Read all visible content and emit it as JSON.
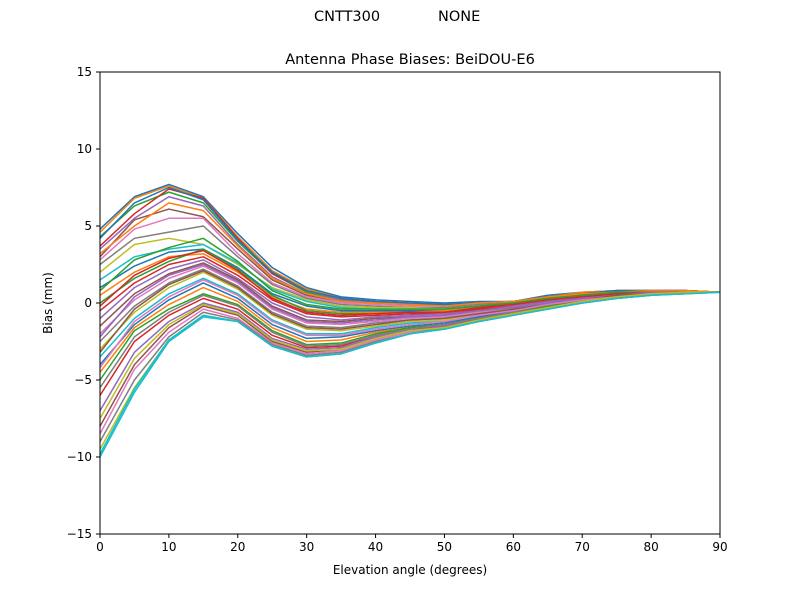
{
  "suptitle": {
    "left": "CNTT300",
    "right": "NONE"
  },
  "chart_data": {
    "type": "line",
    "title": "Antenna Phase Biases: BeiDOU-E6",
    "xlabel": "Elevation angle (degrees)",
    "ylabel": "Bias (mm)",
    "xlim": [
      0,
      90
    ],
    "ylim": [
      -15,
      15
    ],
    "xticks": [
      "0",
      "10",
      "20",
      "30",
      "40",
      "50",
      "60",
      "70",
      "80",
      "90"
    ],
    "yticks": [
      "−15",
      "−10",
      "−5",
      "0",
      "5",
      "10",
      "15"
    ],
    "grid": false,
    "legend": "none",
    "x": [
      0,
      5,
      10,
      15,
      20,
      25,
      30,
      35,
      40,
      45,
      50,
      55,
      60,
      65,
      70,
      75,
      80,
      85,
      90
    ],
    "colors": [
      "#1f77b4",
      "#ff7f0e",
      "#2ca02c",
      "#d62728",
      "#9467bd",
      "#8c564b",
      "#e377c2",
      "#7f7f7f",
      "#bcbd22",
      "#17becf"
    ],
    "series": [
      {
        "values": [
          4.8,
          6.9,
          7.7,
          6.9,
          4.5,
          2.3,
          1.0,
          0.4,
          0.2,
          0.1,
          0.0,
          0.1,
          0.1,
          0.5,
          0.7,
          0.8,
          0.8,
          0.8,
          0.7
        ]
      },
      {
        "values": [
          4.6,
          6.8,
          7.6,
          6.8,
          4.3,
          2.1,
          0.9,
          0.3,
          0.1,
          0.0,
          -0.1,
          0.0,
          0.1,
          0.4,
          0.7,
          0.8,
          0.8,
          0.8,
          0.7
        ]
      },
      {
        "values": [
          4.3,
          6.3,
          7.2,
          6.5,
          4.0,
          1.9,
          0.7,
          0.2,
          0.0,
          -0.1,
          -0.1,
          0.0,
          0.1,
          0.4,
          0.6,
          0.8,
          0.8,
          0.8,
          0.7
        ]
      },
      {
        "values": [
          3.7,
          5.8,
          7.4,
          6.8,
          4.2,
          1.9,
          0.8,
          0.3,
          0.1,
          0.0,
          -0.1,
          0.0,
          0.1,
          0.4,
          0.6,
          0.8,
          0.8,
          0.8,
          0.7
        ]
      },
      {
        "values": [
          3.5,
          5.5,
          6.9,
          6.3,
          3.8,
          1.7,
          0.6,
          0.2,
          0.0,
          -0.1,
          -0.1,
          0.0,
          0.1,
          0.4,
          0.6,
          0.8,
          0.8,
          0.8,
          0.7
        ]
      },
      {
        "values": [
          3.0,
          5.4,
          6.1,
          5.6,
          3.5,
          1.5,
          0.5,
          0.1,
          0.0,
          -0.1,
          -0.2,
          0.0,
          0.1,
          0.4,
          0.6,
          0.7,
          0.8,
          0.8,
          0.7
        ]
      },
      {
        "values": [
          2.8,
          4.8,
          5.5,
          5.5,
          3.2,
          1.3,
          0.4,
          0.0,
          -0.1,
          -0.2,
          -0.2,
          -0.1,
          0.0,
          0.3,
          0.6,
          0.7,
          0.8,
          0.8,
          0.7
        ]
      },
      {
        "values": [
          2.5,
          4.2,
          4.6,
          5.0,
          3.0,
          1.2,
          0.3,
          -0.1,
          -0.2,
          -0.3,
          -0.3,
          -0.1,
          0.0,
          0.3,
          0.5,
          0.7,
          0.8,
          0.8,
          0.7
        ]
      },
      {
        "values": [
          2.0,
          3.8,
          4.2,
          3.8,
          2.5,
          1.0,
          0.2,
          -0.2,
          -0.3,
          -0.3,
          -0.4,
          -0.2,
          0.0,
          0.3,
          0.5,
          0.7,
          0.8,
          0.7,
          0.7
        ]
      },
      {
        "values": [
          1.5,
          3.0,
          3.5,
          3.8,
          2.6,
          0.9,
          0.1,
          -0.3,
          -0.4,
          -0.4,
          -0.4,
          -0.2,
          -0.1,
          0.2,
          0.5,
          0.7,
          0.8,
          0.7,
          0.7
        ]
      },
      {
        "values": [
          1.0,
          2.4,
          3.3,
          3.5,
          2.3,
          0.6,
          -0.2,
          -0.5,
          -0.5,
          -0.5,
          -0.5,
          -0.3,
          -0.1,
          0.2,
          0.5,
          0.6,
          0.7,
          0.7,
          0.7
        ]
      },
      {
        "values": [
          0.5,
          2.0,
          3.0,
          3.2,
          2.0,
          0.4,
          -0.4,
          -0.6,
          -0.6,
          -0.6,
          -0.5,
          -0.3,
          -0.1,
          0.2,
          0.4,
          0.6,
          0.7,
          0.7,
          0.7
        ]
      },
      {
        "values": [
          0.0,
          1.6,
          2.7,
          3.5,
          2.2,
          0.5,
          -0.5,
          -0.7,
          -0.7,
          -0.6,
          -0.6,
          -0.4,
          -0.2,
          0.1,
          0.4,
          0.6,
          0.7,
          0.7,
          0.7
        ]
      },
      {
        "values": [
          -0.5,
          1.3,
          2.5,
          3.0,
          1.8,
          0.2,
          -0.7,
          -0.9,
          -0.8,
          -0.7,
          -0.7,
          -0.4,
          -0.2,
          0.1,
          0.4,
          0.6,
          0.7,
          0.7,
          0.7
        ]
      },
      {
        "values": [
          -1.0,
          1.0,
          2.2,
          2.8,
          1.6,
          0.0,
          -0.9,
          -1.1,
          -0.9,
          -0.8,
          -0.7,
          -0.5,
          -0.2,
          0.1,
          0.4,
          0.6,
          0.7,
          0.7,
          0.7
        ]
      },
      {
        "values": [
          -1.5,
          0.6,
          1.9,
          2.6,
          1.5,
          -0.2,
          -1.1,
          -1.2,
          -1.0,
          -0.9,
          -0.8,
          -0.5,
          -0.3,
          0.0,
          0.3,
          0.5,
          0.7,
          0.7,
          0.7
        ]
      },
      {
        "values": [
          -2.0,
          0.2,
          1.6,
          2.4,
          1.3,
          -0.4,
          -1.3,
          -1.4,
          -1.2,
          -1.0,
          -0.9,
          -0.6,
          -0.3,
          0.0,
          0.3,
          0.5,
          0.7,
          0.7,
          0.7
        ]
      },
      {
        "values": [
          -2.5,
          -0.2,
          1.3,
          2.2,
          1.1,
          -0.6,
          -1.5,
          -1.6,
          -1.3,
          -1.1,
          -1.0,
          -0.7,
          -0.4,
          0.0,
          0.3,
          0.5,
          0.6,
          0.7,
          0.7
        ]
      },
      {
        "values": [
          -3.0,
          -0.6,
          1.0,
          2.0,
          0.9,
          -0.8,
          -1.7,
          -1.8,
          -1.5,
          -1.2,
          -1.1,
          -0.7,
          -0.4,
          -0.1,
          0.2,
          0.5,
          0.6,
          0.7,
          0.7
        ]
      },
      {
        "values": [
          -3.5,
          -1.0,
          0.6,
          1.6,
          0.6,
          -1.1,
          -2.0,
          -2.0,
          -1.6,
          -1.3,
          -1.2,
          -0.8,
          -0.5,
          -0.1,
          0.2,
          0.4,
          0.6,
          0.7,
          0.7
        ]
      },
      {
        "values": [
          -4.0,
          -1.4,
          0.2,
          1.3,
          0.3,
          -1.4,
          -2.3,
          -2.2,
          -1.8,
          -1.5,
          -1.3,
          -0.9,
          -0.5,
          -0.2,
          0.2,
          0.4,
          0.6,
          0.7,
          0.7
        ]
      },
      {
        "values": [
          -4.5,
          -1.6,
          -0.1,
          1.0,
          0.1,
          -1.6,
          -2.5,
          -2.4,
          -1.9,
          -1.6,
          -1.4,
          -1.0,
          -0.6,
          -0.2,
          0.1,
          0.4,
          0.6,
          0.7,
          0.7
        ]
      },
      {
        "values": [
          -5.0,
          -1.8,
          -0.4,
          0.6,
          -0.1,
          -1.8,
          -2.7,
          -2.6,
          -2.0,
          -1.6,
          -1.4,
          -1.0,
          -0.6,
          -0.2,
          0.1,
          0.4,
          0.6,
          0.7,
          0.7
        ]
      },
      {
        "values": [
          -6.0,
          -2.5,
          -0.8,
          0.3,
          -0.4,
          -2.1,
          -2.9,
          -2.8,
          -2.1,
          -1.7,
          -1.5,
          -1.0,
          -0.6,
          -0.3,
          0.1,
          0.4,
          0.6,
          0.7,
          0.7
        ]
      },
      {
        "values": [
          -7.0,
          -3.2,
          -1.2,
          0.0,
          -0.6,
          -2.3,
          -3.0,
          -2.9,
          -2.2,
          -1.8,
          -1.5,
          -1.1,
          -0.7,
          -0.3,
          0.1,
          0.4,
          0.6,
          0.7,
          0.7
        ]
      },
      {
        "values": [
          -8.0,
          -4.0,
          -1.6,
          -0.2,
          -0.8,
          -2.5,
          -3.2,
          -3.0,
          -2.3,
          -1.9,
          -1.6,
          -1.1,
          -0.7,
          -0.3,
          0.1,
          0.4,
          0.6,
          0.7,
          0.7
        ]
      },
      {
        "values": [
          -8.5,
          -4.3,
          -1.9,
          -0.4,
          -1.0,
          -2.6,
          -3.3,
          -3.1,
          -2.4,
          -1.9,
          -1.6,
          -1.1,
          -0.7,
          -0.3,
          0.1,
          0.3,
          0.5,
          0.7,
          0.7
        ]
      },
      {
        "values": [
          -9.0,
          -5.0,
          -2.2,
          -0.6,
          -1.1,
          -2.7,
          -3.4,
          -3.2,
          -2.5,
          -2.0,
          -1.6,
          -1.1,
          -0.7,
          -0.4,
          0.0,
          0.3,
          0.5,
          0.7,
          0.7
        ]
      },
      {
        "values": [
          -9.5,
          -5.5,
          -2.4,
          -0.8,
          -1.2,
          -2.8,
          -3.5,
          -3.3,
          -2.6,
          -2.0,
          -1.7,
          -1.2,
          -0.8,
          -0.4,
          0.0,
          0.3,
          0.5,
          0.6,
          0.7
        ]
      },
      {
        "values": [
          -10.0,
          -5.8,
          -2.5,
          -0.9,
          -1.2,
          -2.8,
          -3.5,
          -3.3,
          -2.6,
          -2.0,
          -1.7,
          -1.2,
          -0.8,
          -0.4,
          0.0,
          0.3,
          0.5,
          0.6,
          0.7
        ]
      },
      {
        "values": [
          4.2,
          6.5,
          7.5,
          6.7,
          4.1,
          2.0,
          0.8,
          0.3,
          0.1,
          0.0,
          -0.1,
          0.0,
          0.1,
          0.4,
          0.6,
          0.8,
          0.8,
          0.8,
          0.7
        ]
      },
      {
        "values": [
          3.2,
          5.0,
          6.5,
          6.0,
          3.7,
          1.6,
          0.6,
          0.1,
          0.0,
          -0.1,
          -0.2,
          0.0,
          0.1,
          0.4,
          0.6,
          0.7,
          0.8,
          0.8,
          0.7
        ]
      },
      {
        "values": [
          0.8,
          2.8,
          3.6,
          4.2,
          2.7,
          0.8,
          -0.1,
          -0.4,
          -0.4,
          -0.4,
          -0.4,
          -0.2,
          0.0,
          0.3,
          0.5,
          0.7,
          0.7,
          0.7,
          0.7
        ]
      },
      {
        "values": [
          -0.2,
          1.8,
          2.9,
          3.4,
          2.1,
          0.3,
          -0.6,
          -0.8,
          -0.7,
          -0.6,
          -0.6,
          -0.3,
          -0.1,
          0.2,
          0.4,
          0.6,
          0.7,
          0.7,
          0.7
        ]
      },
      {
        "values": [
          -2.2,
          0.4,
          1.8,
          2.5,
          1.4,
          -0.3,
          -1.2,
          -1.3,
          -1.1,
          -0.9,
          -0.8,
          -0.5,
          -0.3,
          0.0,
          0.3,
          0.5,
          0.7,
          0.7,
          0.7
        ]
      },
      {
        "values": [
          -3.2,
          -0.4,
          1.2,
          2.1,
          1.0,
          -0.7,
          -1.6,
          -1.7,
          -1.4,
          -1.1,
          -1.0,
          -0.7,
          -0.4,
          -0.1,
          0.2,
          0.5,
          0.6,
          0.7,
          0.7
        ]
      },
      {
        "values": [
          -4.2,
          -1.2,
          0.4,
          1.5,
          0.5,
          -1.2,
          -2.1,
          -2.1,
          -1.7,
          -1.4,
          -1.2,
          -0.8,
          -0.5,
          -0.1,
          0.2,
          0.4,
          0.6,
          0.7,
          0.7
        ]
      },
      {
        "values": [
          -5.5,
          -2.2,
          -0.6,
          0.5,
          -0.2,
          -1.9,
          -2.8,
          -2.7,
          -2.1,
          -1.7,
          -1.4,
          -1.0,
          -0.6,
          -0.3,
          0.1,
          0.4,
          0.6,
          0.7,
          0.7
        ]
      },
      {
        "values": [
          -7.5,
          -3.6,
          -1.4,
          -0.1,
          -0.7,
          -2.4,
          -3.1,
          -3.0,
          -2.3,
          -1.8,
          -1.6,
          -1.1,
          -0.7,
          -0.3,
          0.1,
          0.4,
          0.6,
          0.7,
          0.7
        ]
      },
      {
        "values": [
          -9.8,
          -5.6,
          -2.4,
          -0.8,
          -1.2,
          -2.8,
          -3.5,
          -3.3,
          -2.6,
          -2.0,
          -1.7,
          -1.2,
          -0.8,
          -0.4,
          0.0,
          0.3,
          0.5,
          0.6,
          0.7
        ]
      }
    ]
  }
}
